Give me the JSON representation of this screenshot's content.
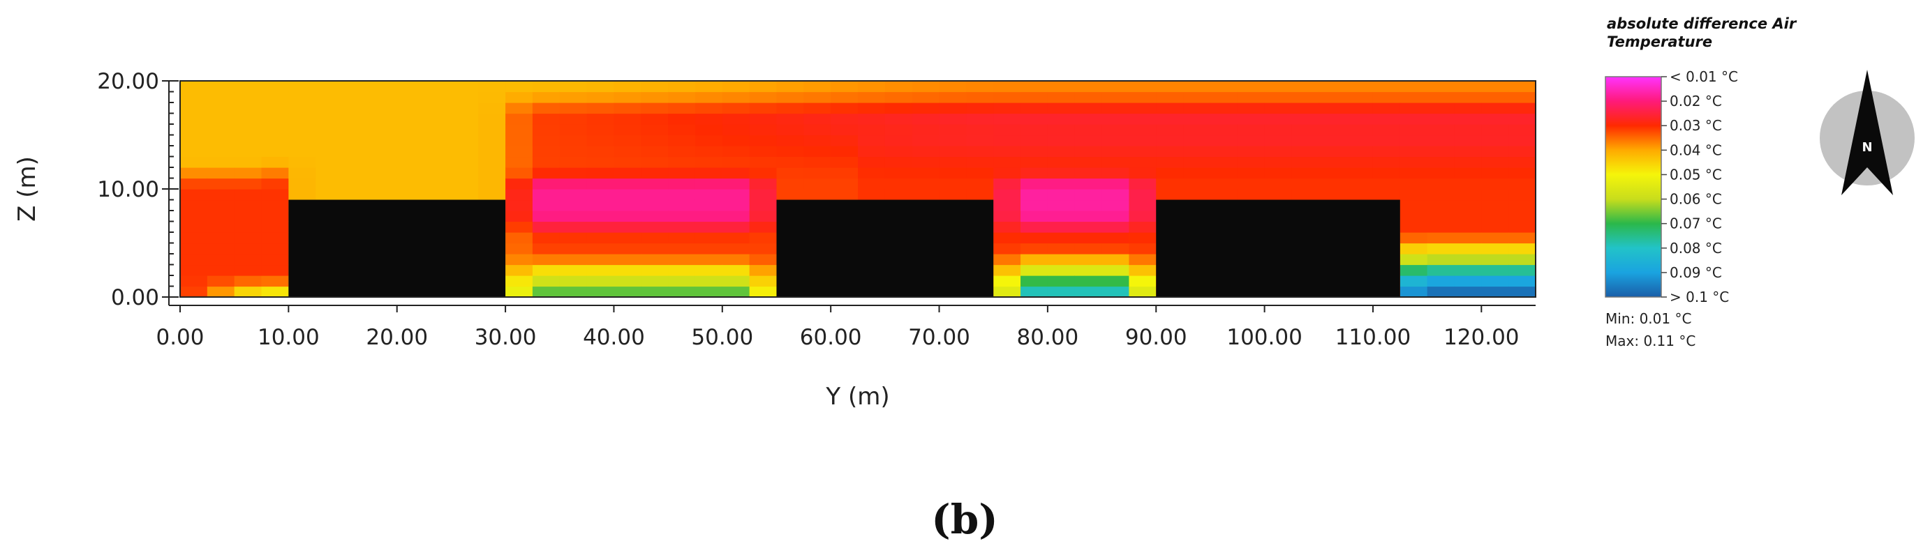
{
  "chart_data": {
    "type": "heatmap",
    "title": "",
    "xlabel": "Y (m)",
    "ylabel": "Z (m)",
    "xlim": [
      0,
      125
    ],
    "ylim": [
      0,
      20
    ],
    "x_ticks": [
      "0.00",
      "10.00",
      "20.00",
      "30.00",
      "40.00",
      "50.00",
      "60.00",
      "70.00",
      "80.00",
      "90.00",
      "100.00",
      "110.00",
      "120.00"
    ],
    "y_ticks": [
      "0.00",
      "10.00",
      "20.00"
    ],
    "buildings": [
      {
        "y_start": 10,
        "y_end": 30,
        "height": 9
      },
      {
        "y_start": 55,
        "y_end": 75,
        "height": 9
      },
      {
        "y_start": 90,
        "y_end": 112.5,
        "height": 9
      }
    ],
    "legend": {
      "title": "absolute difference Air Temperature",
      "levels": [
        "< 0.01 °C",
        "0.02 °C",
        "0.03 °C",
        "0.04 °C",
        "0.05 °C",
        "0.06 °C",
        "0.07 °C",
        "0.08 °C",
        "0.09 °C",
        "> 0.1 °C"
      ],
      "colors": [
        "#1a5ea8",
        "#1aa3e0",
        "#22c3c8",
        "#2bb84a",
        "#c8dd1c",
        "#f5f50a",
        "#ffaa00",
        "#ff2a00",
        "#ff1a7a",
        "#ff33ff"
      ],
      "min_label": "Min: 0.01 °C",
      "max_label": "Max: 0.11 °C"
    },
    "north_arrow_label": "N",
    "panel_label": "(b)"
  }
}
